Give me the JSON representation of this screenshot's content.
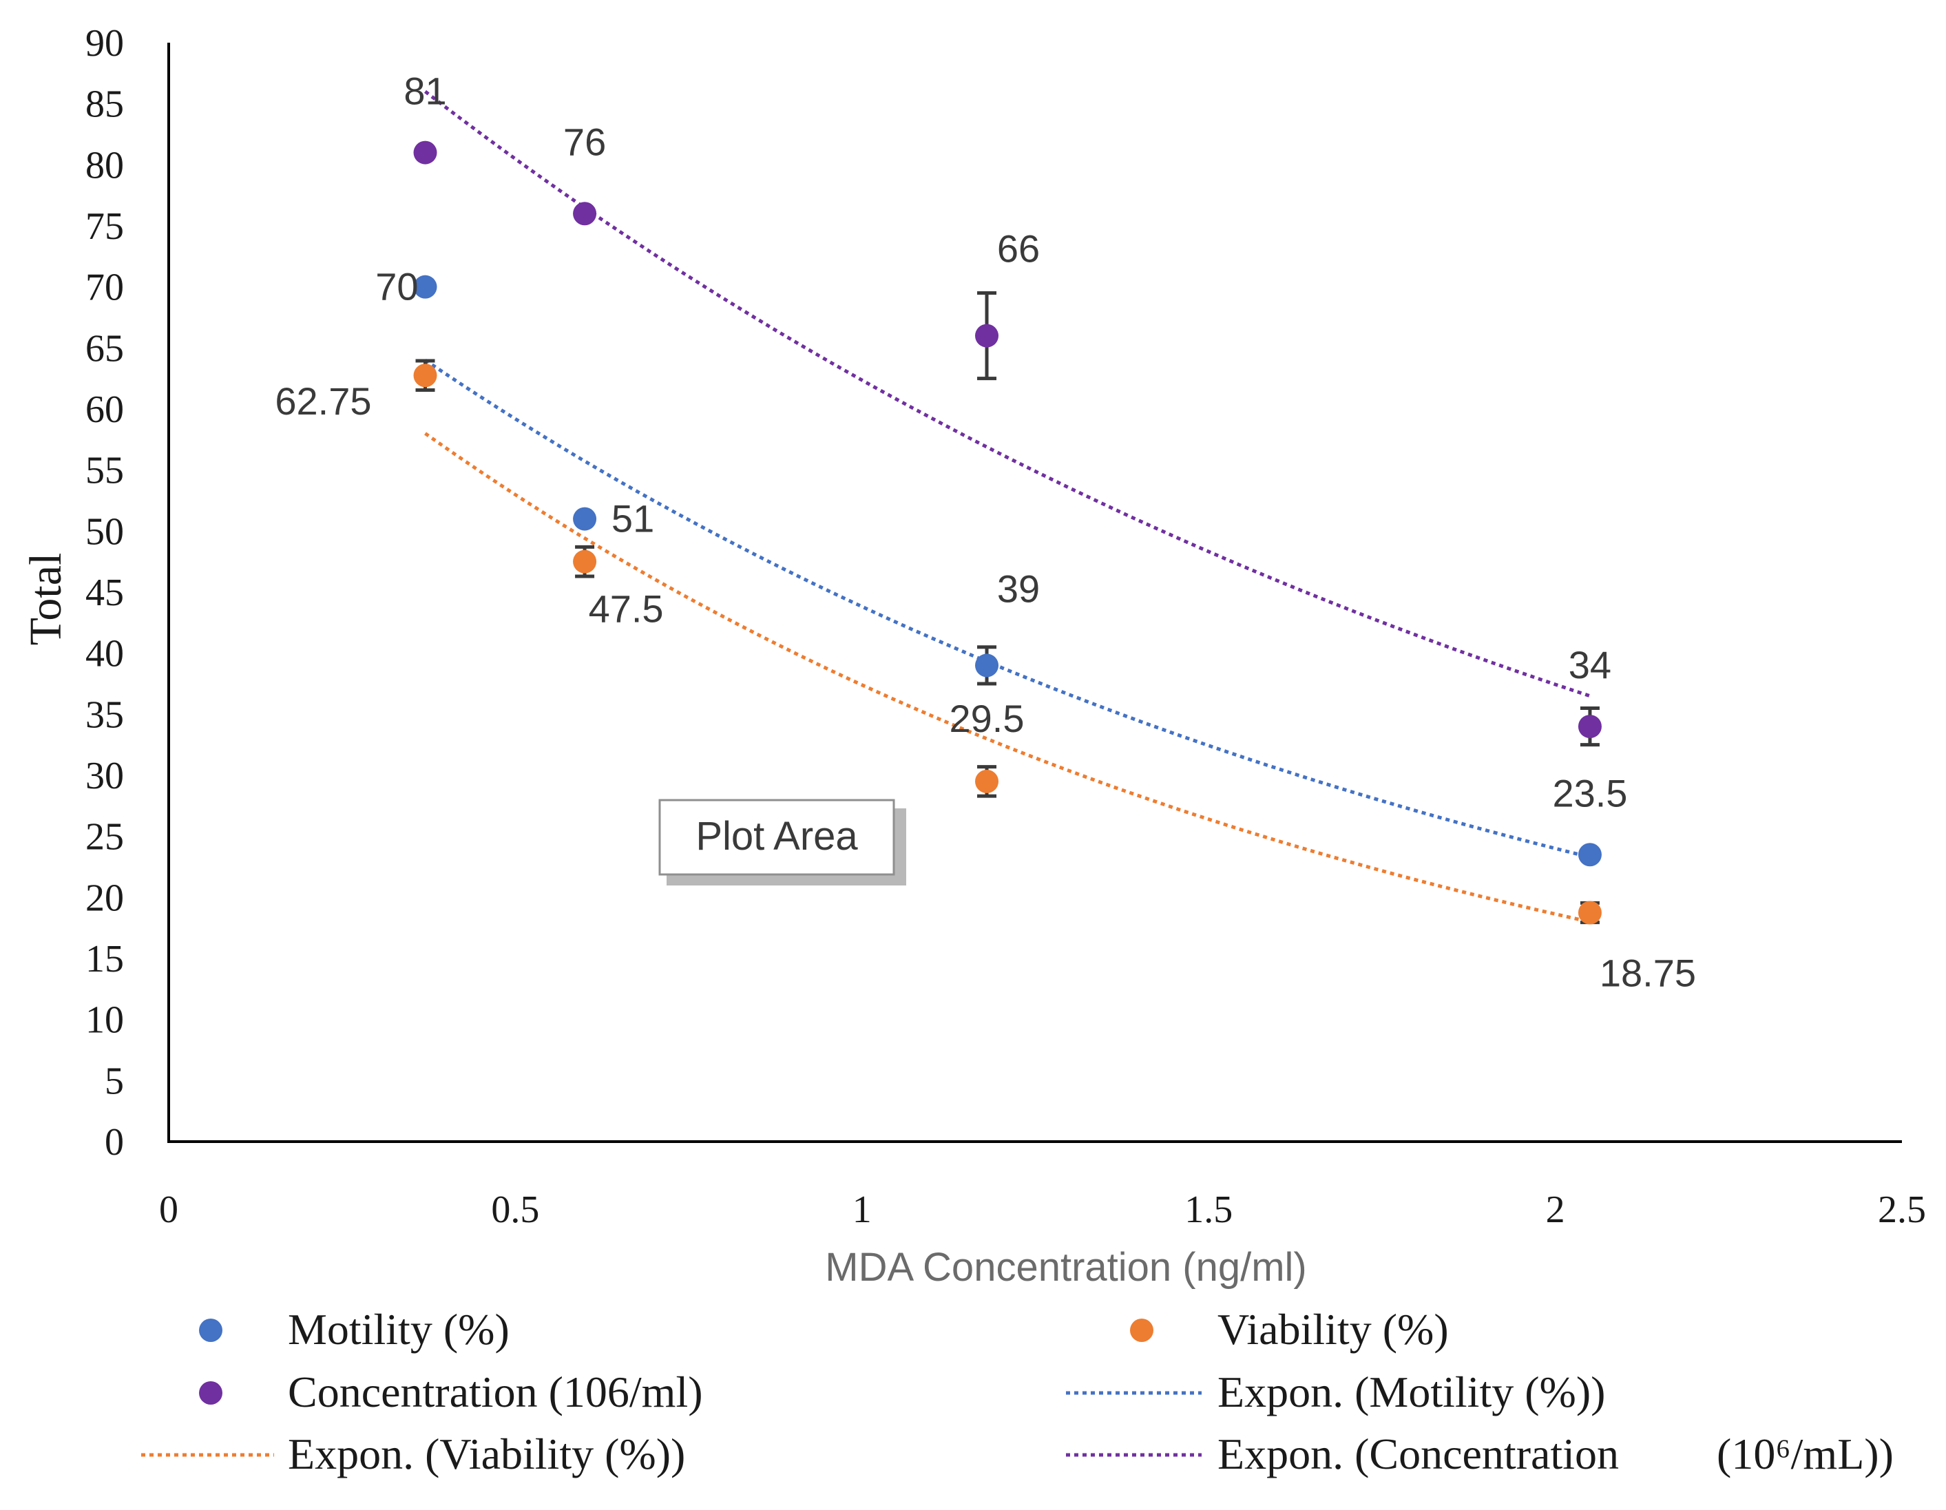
{
  "chart_data": {
    "type": "scatter",
    "title": "",
    "xlabel": "MDA Concentration (ng/ml)",
    "ylabel": "Total",
    "xlim": [
      0,
      2.5
    ],
    "ylim": [
      0,
      90
    ],
    "x_ticks": [
      "0",
      "0.5",
      "1",
      "1.5",
      "2",
      "2.5"
    ],
    "y_ticks": [
      "0",
      "5",
      "10",
      "15",
      "20",
      "25",
      "30",
      "35",
      "40",
      "45",
      "50",
      "55",
      "60",
      "65",
      "70",
      "75",
      "80",
      "85",
      "90"
    ],
    "grid": false,
    "series": [
      {
        "key": "motility",
        "name": "Motility (%)",
        "color": "#4472C4",
        "x": [
          0.37,
          0.6,
          1.18,
          2.05
        ],
        "y": [
          70,
          51,
          39,
          23.5
        ],
        "labels": [
          "70",
          "51",
          "39",
          "23.5"
        ],
        "error": [
          0,
          0,
          1.5,
          0
        ]
      },
      {
        "key": "viability",
        "name": "Viability (%)",
        "color": "#ED7D31",
        "x": [
          0.37,
          0.6,
          1.18,
          2.05
        ],
        "y": [
          62.75,
          47.5,
          29.5,
          18.75
        ],
        "labels": [
          "62.75",
          "47.5",
          "29.5",
          "18.75"
        ],
        "error": [
          1.2,
          1.2,
          1.2,
          0.8
        ]
      },
      {
        "key": "concentration",
        "name": "Concentration (106/ml)",
        "color": "#7030A0",
        "x": [
          0.37,
          0.6,
          1.18,
          2.05
        ],
        "y": [
          81,
          76,
          66,
          34
        ],
        "labels": [
          "81",
          "76",
          "66",
          "34"
        ],
        "error": [
          0,
          0,
          3.5,
          1.5
        ]
      }
    ],
    "trendlines": [
      {
        "key": "motility",
        "name": "Expon. (Motility (%))",
        "type": "exponential",
        "color": "#4472C4",
        "x_start": 0.37,
        "x_end": 2.05,
        "y_start": 64,
        "y_end": 23.3
      },
      {
        "key": "viability",
        "name": "Expon. (Viability (%))",
        "type": "exponential",
        "color": "#ED7D31",
        "x_start": 0.37,
        "x_end": 2.05,
        "y_start": 58,
        "y_end": 18
      },
      {
        "key": "concentration",
        "name": "Expon. (Concentration",
        "name_suffix": "(10⁶/mL))",
        "type": "exponential",
        "color": "#7030A0",
        "x_start": 0.37,
        "x_end": 2.05,
        "y_start": 86,
        "y_end": 36.5
      }
    ],
    "legend": {
      "position": "bottom",
      "entries": [
        "Motility (%)",
        "Viability (%)",
        "Concentration (106/ml)",
        "Expon. (Motility (%))",
        "Expon. (Viability (%))",
        "Expon. (Concentration  (10⁶/mL))"
      ]
    },
    "tooltip": {
      "text": "Plot Area"
    }
  }
}
